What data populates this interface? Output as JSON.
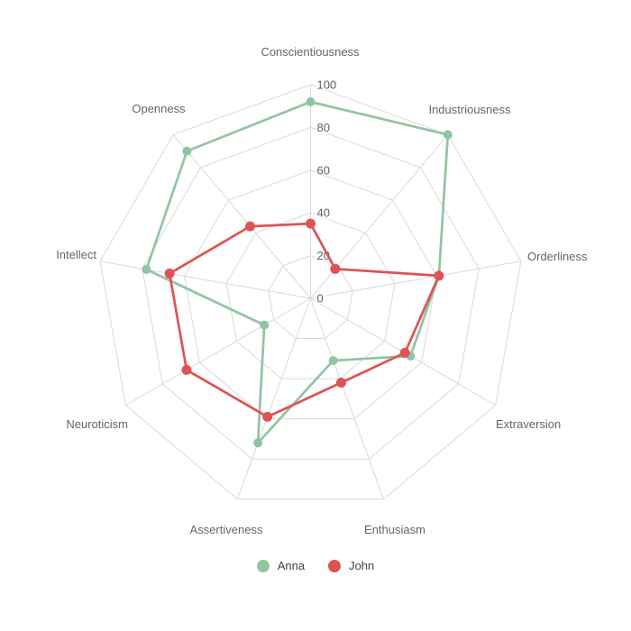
{
  "chart_data": {
    "type": "radar",
    "categories": [
      "Conscientiousness",
      "Industriousness",
      "Orderliness",
      "Extraversion",
      "Enthusiasm",
      "Assertiveness",
      "Neuroticism",
      "Intellect",
      "Openness"
    ],
    "series": [
      {
        "name": "Anna",
        "color": "#90c5a2",
        "values": [
          92,
          100,
          61,
          54,
          31,
          72,
          25,
          78,
          90
        ]
      },
      {
        "name": "John",
        "color": "#de5355",
        "values": [
          35,
          18,
          61,
          51,
          42,
          59,
          67,
          67,
          44
        ]
      }
    ],
    "radial_axis": {
      "min": 0,
      "max": 100,
      "tick_interval": 20,
      "tick_labels": [
        "0",
        "20",
        "40",
        "60",
        "80",
        "100"
      ]
    },
    "legend": {
      "position": "bottom",
      "items": [
        "Anna",
        "John"
      ]
    },
    "grid": true
  },
  "colors": {
    "background": "#ffffff",
    "grid_line": "#d9d9d9",
    "tick_label": "#606060",
    "axis_label": "#65656a",
    "legend_text": "#3f3f42"
  }
}
